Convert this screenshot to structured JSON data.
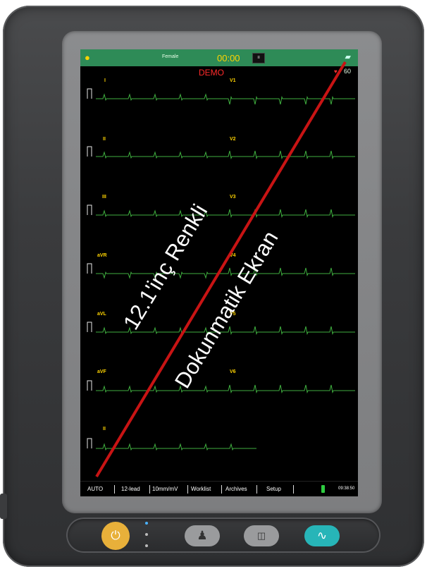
{
  "status_bar": {
    "gender": "Female",
    "timer": "00:00",
    "left_icon": "bulb-icon",
    "right_icon": "lead-status-icon"
  },
  "demo_label": "DEMO",
  "heart_rate": {
    "icon": "heart-icon",
    "value": "60"
  },
  "leads": {
    "left": [
      "I",
      "II",
      "III",
      "aVR",
      "aVL",
      "aVF",
      "II"
    ],
    "right": [
      "V1",
      "V2",
      "V3",
      "V4",
      "V5",
      "V6"
    ]
  },
  "menu": {
    "items": [
      "AUTO",
      "12-lead",
      "10mm/mV",
      "Worklist",
      "Archives",
      "Setup"
    ],
    "clock": "09:38:50"
  },
  "overlay": {
    "line1": "12.1'inç Renkli",
    "line2": "Dokunmatik Ekran",
    "line_color": "#c81414"
  },
  "hardware_buttons": [
    {
      "name": "power-icon",
      "color": "#e8b03a"
    },
    {
      "name": "patient-icon",
      "color": "#9a9b9d"
    },
    {
      "name": "print-icon",
      "color": "#9a9b9d"
    },
    {
      "name": "ecg-start-icon",
      "color": "#27b5b8"
    }
  ],
  "colors": {
    "status_bar": "#2e8b57",
    "lead_label": "#ffd400",
    "ecg_trace": "#3fae3f",
    "demo": "#ff2a2a"
  }
}
